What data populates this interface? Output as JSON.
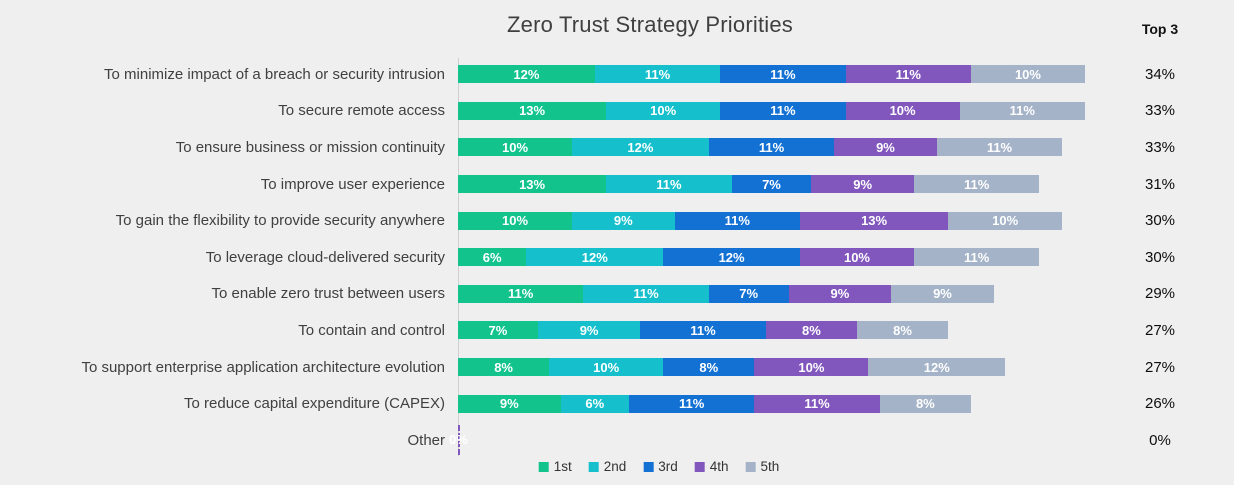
{
  "chart_data": {
    "type": "bar",
    "orientation": "horizontal",
    "stacked": true,
    "title": "Zero Trust Strategy Priorities",
    "totals_header": "Top 3",
    "value_suffix": "%",
    "background_color": "#EFEFEF",
    "legend_position": "bottom",
    "axis_max": 55,
    "categories": [
      "To minimize impact of a breach or security intrusion",
      "To secure remote access",
      "To ensure business or mission continuity",
      "To improve user experience",
      "To gain the flexibility to provide security anywhere",
      "To leverage cloud-delivered security",
      "To enable zero trust between users",
      "To contain and control",
      "To support enterprise application architecture evolution",
      "To reduce capital expenditure (CAPEX)",
      "Other"
    ],
    "series": [
      {
        "name": "1st",
        "color": "#12C38C",
        "values": [
          12,
          13,
          10,
          13,
          10,
          6,
          11,
          7,
          8,
          9,
          0
        ]
      },
      {
        "name": "2nd",
        "color": "#15C0CC",
        "values": [
          11,
          10,
          12,
          11,
          9,
          12,
          11,
          9,
          10,
          6,
          0
        ]
      },
      {
        "name": "3rd",
        "color": "#1371D4",
        "values": [
          11,
          11,
          11,
          7,
          11,
          12,
          7,
          11,
          8,
          11,
          0
        ]
      },
      {
        "name": "4th",
        "color": "#8157BD",
        "values": [
          11,
          10,
          9,
          9,
          13,
          10,
          9,
          8,
          10,
          11,
          0
        ]
      },
      {
        "name": "5th",
        "color": "#A4B3C8",
        "values": [
          10,
          11,
          11,
          11,
          10,
          11,
          9,
          8,
          12,
          8,
          0
        ]
      }
    ],
    "top3_values": [
      34,
      33,
      33,
      31,
      30,
      30,
      29,
      27,
      27,
      26,
      0
    ],
    "zero_bar_label": "0%"
  }
}
